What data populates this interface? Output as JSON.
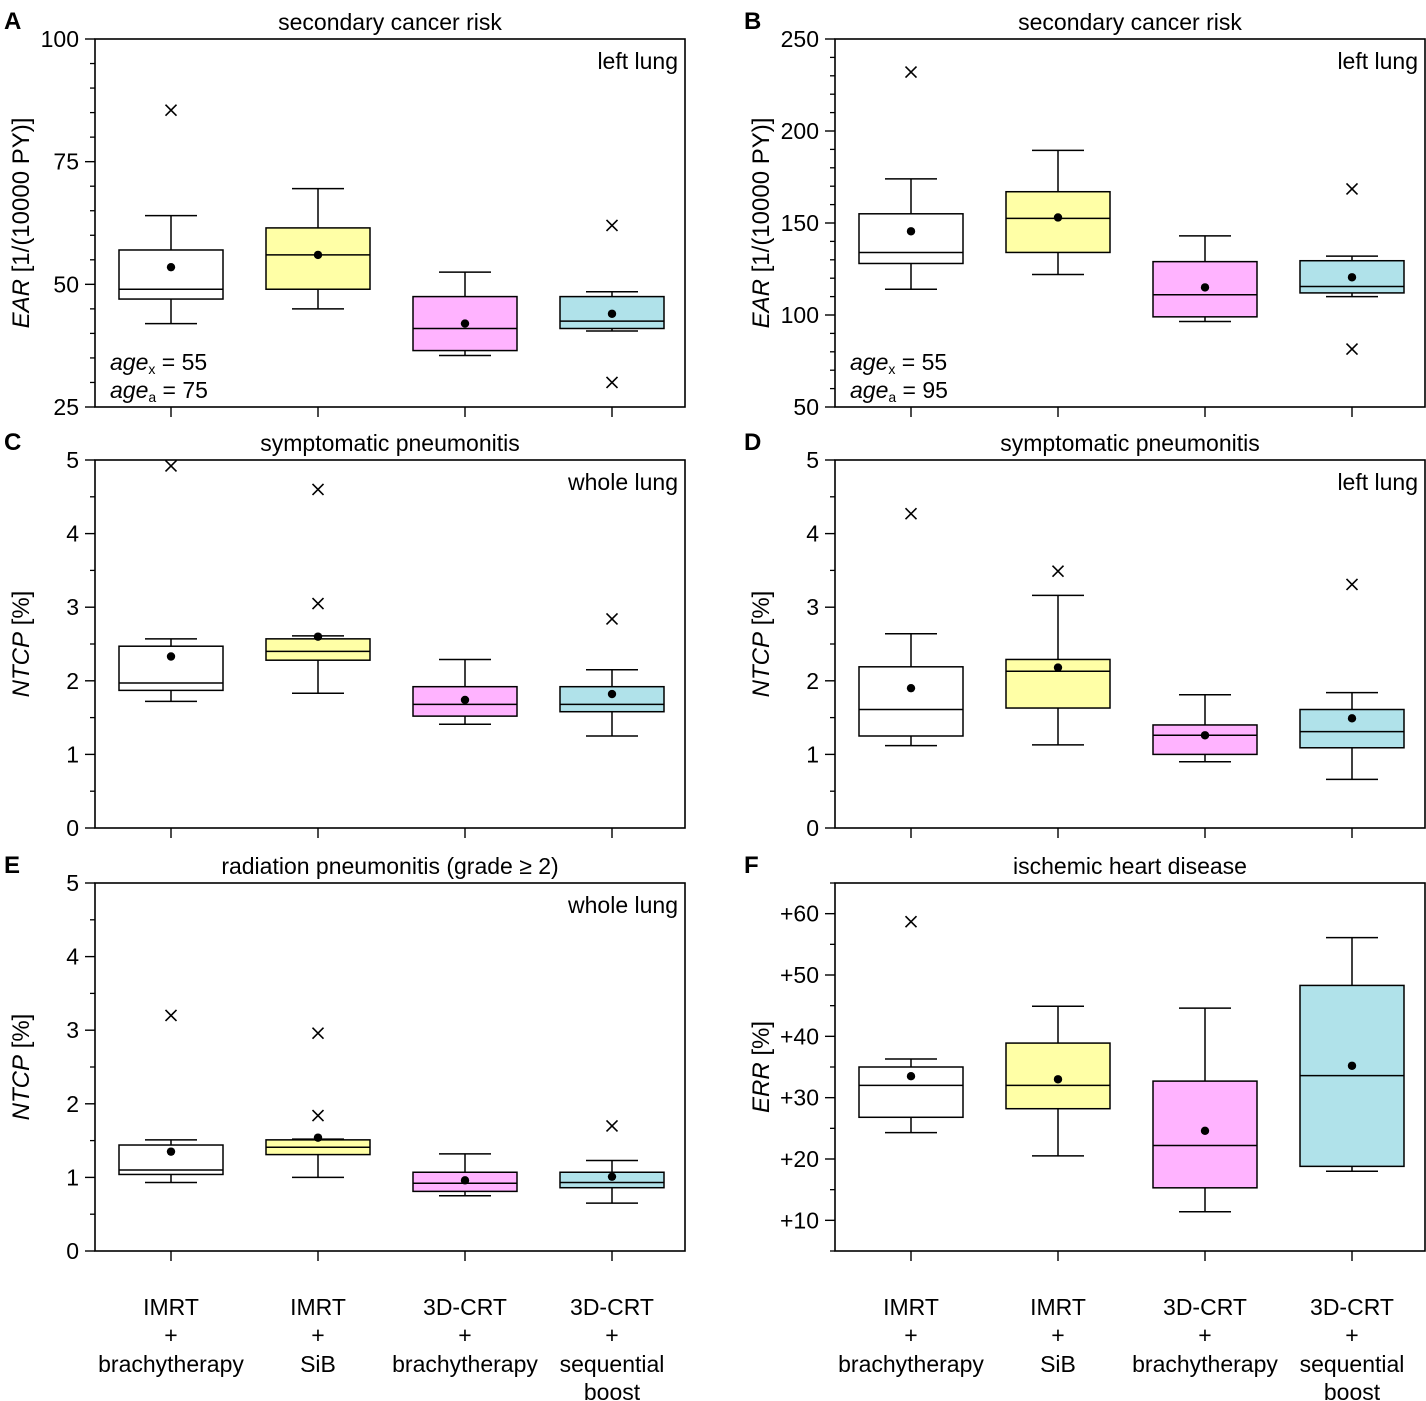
{
  "figure": {
    "categories": [
      [
        "IMRT",
        "+",
        "brachytherapy"
      ],
      [
        "IMRT",
        "+",
        "SiB"
      ],
      [
        "3D-CRT",
        "+",
        "brachytherapy"
      ],
      [
        "3D-CRT",
        "+",
        "sequential",
        "boost"
      ]
    ],
    "colors": {
      "imrt_brachy": "#ffffff",
      "imrt_sib": "#ffffa6",
      "crt_brachy": "#ffb3ff",
      "crt_seq": "#b0e2ea"
    }
  },
  "chart_data": [
    {
      "panel": "A",
      "type": "box",
      "title": "secondary cancer risk",
      "region": "left lung",
      "ylabel_italic": "EAR",
      "ylabel_unit": " [1/(10000 PY)]",
      "ylim": [
        25,
        100
      ],
      "yticks": [
        25,
        50,
        75,
        100
      ],
      "ytick_labels": [
        "25",
        "50",
        "75",
        "100"
      ],
      "minor_step": 5,
      "annotation": [
        {
          "base": "age",
          "sub": "x",
          "rest": " = 55"
        },
        {
          "base": "age",
          "sub": "a",
          "rest": " = 75"
        }
      ],
      "boxes": [
        {
          "whisker_low": 42,
          "q1": 47,
          "median": 49,
          "q3": 57,
          "whisker_high": 64,
          "mean": 53.5,
          "outliers": [
            85.5
          ]
        },
        {
          "whisker_low": 45,
          "q1": 49,
          "median": 56,
          "q3": 61.5,
          "whisker_high": 69.5,
          "mean": 56,
          "outliers": []
        },
        {
          "whisker_low": 35.5,
          "q1": 36.5,
          "median": 41,
          "q3": 47.5,
          "whisker_high": 52.5,
          "mean": 42,
          "outliers": []
        },
        {
          "whisker_low": 40.5,
          "q1": 41,
          "median": 42.5,
          "q3": 47.5,
          "whisker_high": 48.5,
          "mean": 44,
          "outliers": [
            62,
            30
          ]
        }
      ]
    },
    {
      "panel": "B",
      "type": "box",
      "title": "secondary cancer risk",
      "region": "left lung",
      "ylabel_italic": "EAR",
      "ylabel_unit": " [1/(10000 PY)]",
      "ylim": [
        50,
        250
      ],
      "yticks": [
        50,
        100,
        150,
        200,
        250
      ],
      "ytick_labels": [
        "50",
        "100",
        "150",
        "200",
        "250"
      ],
      "minor_step": 10,
      "annotation": [
        {
          "base": "age",
          "sub": "x",
          "rest": " = 55"
        },
        {
          "base": "age",
          "sub": "a",
          "rest": " = 95"
        }
      ],
      "boxes": [
        {
          "whisker_low": 114,
          "q1": 128,
          "median": 134,
          "q3": 155,
          "whisker_high": 174,
          "mean": 145.5,
          "outliers": [
            232
          ]
        },
        {
          "whisker_low": 122,
          "q1": 134,
          "median": 152.5,
          "q3": 167,
          "whisker_high": 189.5,
          "mean": 153,
          "outliers": []
        },
        {
          "whisker_low": 96.5,
          "q1": 99,
          "median": 111,
          "q3": 129,
          "whisker_high": 143,
          "mean": 115,
          "outliers": []
        },
        {
          "whisker_low": 110,
          "q1": 112,
          "median": 115.5,
          "q3": 129.5,
          "whisker_high": 132,
          "mean": 120.5,
          "outliers": [
            168.5,
            81.5
          ]
        }
      ]
    },
    {
      "panel": "C",
      "type": "box",
      "title": "symptomatic pneumonitis",
      "region": "whole lung",
      "ylabel_italic": "NTCP",
      "ylabel_unit": " [%]",
      "ylim": [
        0,
        5
      ],
      "yticks": [
        0,
        1,
        2,
        3,
        4,
        5
      ],
      "ytick_labels": [
        "0",
        "1",
        "2",
        "3",
        "4",
        "5"
      ],
      "minor_step": 0.5,
      "annotation": [],
      "boxes": [
        {
          "whisker_low": 1.72,
          "q1": 1.87,
          "median": 1.97,
          "q3": 2.47,
          "whisker_high": 2.57,
          "mean": 2.33,
          "outliers": [
            4.92
          ]
        },
        {
          "whisker_low": 1.83,
          "q1": 2.28,
          "median": 2.4,
          "q3": 2.57,
          "whisker_high": 2.61,
          "mean": 2.6,
          "outliers": [
            4.6,
            3.05
          ]
        },
        {
          "whisker_low": 1.41,
          "q1": 1.52,
          "median": 1.68,
          "q3": 1.92,
          "whisker_high": 2.29,
          "mean": 1.74,
          "outliers": []
        },
        {
          "whisker_low": 1.25,
          "q1": 1.58,
          "median": 1.68,
          "q3": 1.92,
          "whisker_high": 2.15,
          "mean": 1.82,
          "outliers": [
            2.84
          ]
        }
      ]
    },
    {
      "panel": "D",
      "type": "box",
      "title": "symptomatic pneumonitis",
      "region": "left lung",
      "ylabel_italic": "NTCP",
      "ylabel_unit": " [%]",
      "ylim": [
        0,
        5
      ],
      "yticks": [
        0,
        1,
        2,
        3,
        4,
        5
      ],
      "ytick_labels": [
        "0",
        "1",
        "2",
        "3",
        "4",
        "5"
      ],
      "minor_step": 0.5,
      "annotation": [],
      "boxes": [
        {
          "whisker_low": 1.12,
          "q1": 1.25,
          "median": 1.61,
          "q3": 2.19,
          "whisker_high": 2.64,
          "mean": 1.9,
          "outliers": [
            4.27
          ]
        },
        {
          "whisker_low": 1.13,
          "q1": 1.63,
          "median": 2.13,
          "q3": 2.29,
          "whisker_high": 3.16,
          "mean": 2.18,
          "outliers": [
            3.49
          ]
        },
        {
          "whisker_low": 0.9,
          "q1": 1.0,
          "median": 1.26,
          "q3": 1.4,
          "whisker_high": 1.81,
          "mean": 1.26,
          "outliers": []
        },
        {
          "whisker_low": 0.66,
          "q1": 1.09,
          "median": 1.31,
          "q3": 1.61,
          "whisker_high": 1.84,
          "mean": 1.49,
          "outliers": [
            3.31
          ]
        }
      ]
    },
    {
      "panel": "E",
      "type": "box",
      "title": "radiation pneumonitis (grade ≥ 2)",
      "region": "whole lung",
      "ylabel_italic": "NTCP",
      "ylabel_unit": " [%]",
      "ylim": [
        0,
        5
      ],
      "yticks": [
        0,
        1,
        2,
        3,
        4,
        5
      ],
      "ytick_labels": [
        "0",
        "1",
        "2",
        "3",
        "4",
        "5"
      ],
      "minor_step": 0.5,
      "annotation": [],
      "boxes": [
        {
          "whisker_low": 0.93,
          "q1": 1.04,
          "median": 1.1,
          "q3": 1.44,
          "whisker_high": 1.51,
          "mean": 1.35,
          "outliers": [
            3.2
          ]
        },
        {
          "whisker_low": 1.0,
          "q1": 1.31,
          "median": 1.41,
          "q3": 1.51,
          "whisker_high": 1.52,
          "mean": 1.54,
          "outliers": [
            2.96,
            1.84
          ]
        },
        {
          "whisker_low": 0.75,
          "q1": 0.81,
          "median": 0.92,
          "q3": 1.07,
          "whisker_high": 1.32,
          "mean": 0.96,
          "outliers": []
        },
        {
          "whisker_low": 0.65,
          "q1": 0.86,
          "median": 0.93,
          "q3": 1.07,
          "whisker_high": 1.23,
          "mean": 1.01,
          "outliers": [
            1.7
          ]
        }
      ]
    },
    {
      "panel": "F",
      "type": "box",
      "title": "ischemic heart disease",
      "region": "",
      "ylabel_italic": "ERR",
      "ylabel_unit": " [%]",
      "ylim": [
        5,
        65
      ],
      "yticks": [
        10,
        20,
        30,
        40,
        50,
        60
      ],
      "ytick_labels": [
        "+10",
        "+20",
        "+30",
        "+40",
        "+50",
        "+60"
      ],
      "minor_step": 5,
      "annotation": [],
      "boxes": [
        {
          "whisker_low": 24.3,
          "q1": 26.8,
          "median": 32,
          "q3": 35,
          "whisker_high": 36.3,
          "mean": 33.5,
          "outliers": [
            58.7
          ]
        },
        {
          "whisker_low": 20.5,
          "q1": 28.2,
          "median": 32,
          "q3": 38.9,
          "whisker_high": 44.9,
          "mean": 33,
          "outliers": []
        },
        {
          "whisker_low": 11.4,
          "q1": 15.3,
          "median": 22.2,
          "q3": 32.7,
          "whisker_high": 44.6,
          "mean": 24.6,
          "outliers": []
        },
        {
          "whisker_low": 18,
          "q1": 18.8,
          "median": 33.6,
          "q3": 48.3,
          "whisker_high": 56.1,
          "mean": 35.2,
          "outliers": []
        }
      ]
    }
  ]
}
